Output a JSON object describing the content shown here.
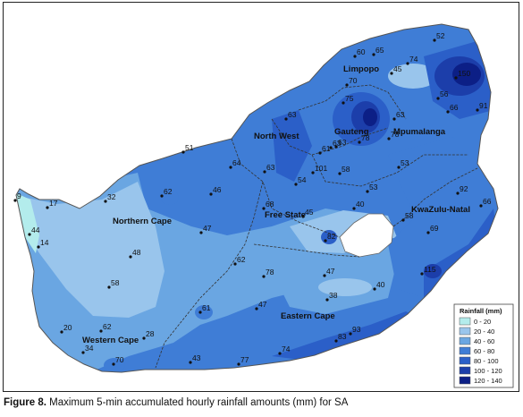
{
  "caption": {
    "label": "Figure 8.",
    "text": "Maximum 5-min accumulated hourly rainfall amounts (mm) for SA"
  },
  "provinces": [
    {
      "name": "Limpopo"
    },
    {
      "name": "North West"
    },
    {
      "name": "Gauteng"
    },
    {
      "name": "Mpumalanga"
    },
    {
      "name": "Free State"
    },
    {
      "name": "KwaZulu-Natal"
    },
    {
      "name": "Northern Cape"
    },
    {
      "name": "Eastern Cape"
    },
    {
      "name": "Western Cape"
    }
  ],
  "stations": [
    "52",
    "60",
    "65",
    "74",
    "45",
    "150",
    "70",
    "75",
    "56",
    "66",
    "91",
    "63",
    "63",
    "78",
    "78",
    "63",
    "61",
    "63",
    "101",
    "51",
    "64",
    "63",
    "58",
    "53",
    "54",
    "53",
    "9",
    "17",
    "32",
    "62",
    "46",
    "68",
    "45",
    "40",
    "58",
    "92",
    "66",
    "69",
    "82",
    "44",
    "14",
    "47",
    "48",
    "62",
    "78",
    "47",
    "58",
    "115",
    "61",
    "47",
    "38",
    "40",
    "20",
    "62",
    "28",
    "34",
    "70",
    "43",
    "77",
    "74",
    "83",
    "93"
  ],
  "legend": {
    "title": "Rainfall (mm)",
    "items": [
      {
        "label": "0 - 20",
        "color": "#b3ecec"
      },
      {
        "label": "20 - 40",
        "color": "#99c5ec"
      },
      {
        "label": "40 - 60",
        "color": "#6aa6e2"
      },
      {
        "label": "60 - 80",
        "color": "#3f7dd6"
      },
      {
        "label": "80 - 100",
        "color": "#2b5fc8"
      },
      {
        "label": "100 - 120",
        "color": "#1c3eaa"
      },
      {
        "label": "120 - 140",
        "color": "#0c1f86"
      }
    ]
  }
}
